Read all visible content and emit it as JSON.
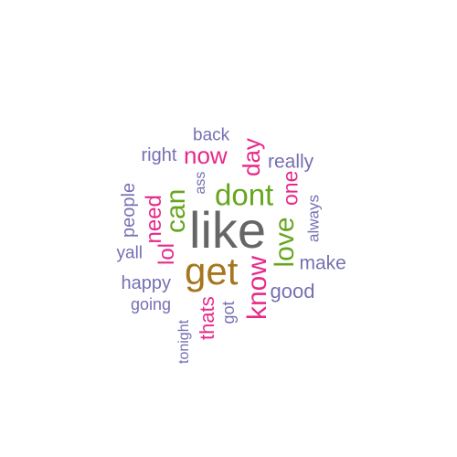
{
  "word_cloud": {
    "words": [
      {
        "text": "like",
        "color": "#666666"
      },
      {
        "text": "get",
        "color": "#a6761d"
      },
      {
        "text": "dont",
        "color": "#66a61e"
      },
      {
        "text": "love",
        "color": "#66a61e"
      },
      {
        "text": "know",
        "color": "#e7298a"
      },
      {
        "text": "can",
        "color": "#66a61e"
      },
      {
        "text": "now",
        "color": "#e7298a"
      },
      {
        "text": "day",
        "color": "#e7298a"
      },
      {
        "text": "need",
        "color": "#e7298a"
      },
      {
        "text": "lol",
        "color": "#e7298a"
      },
      {
        "text": "one",
        "color": "#e7298a"
      },
      {
        "text": "thats",
        "color": "#e7298a"
      },
      {
        "text": "good",
        "color": "#7570b3"
      },
      {
        "text": "make",
        "color": "#7570b3"
      },
      {
        "text": "really",
        "color": "#7570b3"
      },
      {
        "text": "happy",
        "color": "#7570b3"
      },
      {
        "text": "right",
        "color": "#7570b3"
      },
      {
        "text": "back",
        "color": "#7570b3"
      },
      {
        "text": "people",
        "color": "#7570b3"
      },
      {
        "text": "yall",
        "color": "#7570b3"
      },
      {
        "text": "going",
        "color": "#7570b3"
      },
      {
        "text": "got",
        "color": "#7570b3"
      },
      {
        "text": "always",
        "color": "#7570b3"
      },
      {
        "text": "ass",
        "color": "#7570b3"
      },
      {
        "text": "tonight",
        "color": "#7570b3"
      }
    ]
  }
}
